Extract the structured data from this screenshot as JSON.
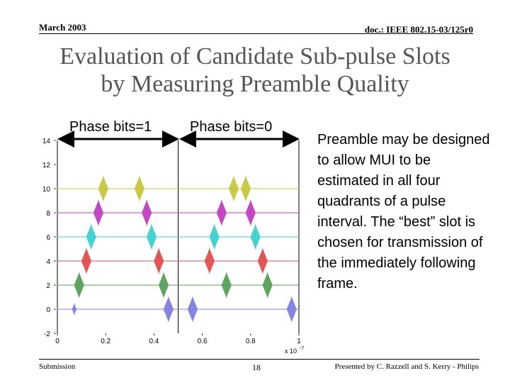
{
  "header": {
    "date": "March 2003",
    "doc_id": "doc.: IEEE 802.15-03/125r0"
  },
  "title": {
    "line1": "Evaluation of Candidate Sub-pulse Slots",
    "line2": "by Measuring Preamble Quality"
  },
  "phase_labels": {
    "left": "Phase bits=1",
    "right": "Phase bits=0"
  },
  "body_text": "Preamble may be designed to allow MUI to be estimated in all four quadrants of a pulse interval. The “best” slot is chosen for transmission of the immediately following frame.",
  "footer": {
    "left": "Submission",
    "center": "18",
    "right": "Presented by C. Razzell and S. Kerry - Philips"
  },
  "chart_data": {
    "type": "line",
    "x_tick_labels": [
      "0",
      "0.2",
      "0.4",
      "0.6",
      "0.8",
      "1"
    ],
    "x_exponent_label": "x 10",
    "x_exponent": "-7",
    "y_tick_labels": [
      "-2",
      "0",
      "2",
      "4",
      "6",
      "8",
      "10",
      "12",
      "14"
    ],
    "xlim": [
      0,
      1e-07
    ],
    "ylim": [
      -2,
      14
    ],
    "grid": false,
    "series": [
      {
        "offset": 0,
        "color": "#8080e0",
        "pulse_times": [
          0.07,
          0.46,
          0.56,
          0.97
        ],
        "pulse_amplitudes": [
          0.4,
          1.0,
          1.0,
          1.0
        ]
      },
      {
        "offset": 2,
        "color": "#5aa05a",
        "pulse_times": [
          0.09,
          0.44,
          0.7,
          0.87
        ]
      },
      {
        "offset": 4,
        "color": "#e05050",
        "pulse_times": [
          0.12,
          0.42,
          0.63,
          0.85
        ]
      },
      {
        "offset": 6,
        "color": "#40d0d0",
        "pulse_times": [
          0.14,
          0.39,
          0.65,
          0.82
        ]
      },
      {
        "offset": 8,
        "color": "#c040c0",
        "pulse_times": [
          0.17,
          0.37,
          0.68,
          0.8
        ]
      },
      {
        "offset": 10,
        "color": "#c8c840",
        "pulse_times": [
          0.19,
          0.34,
          0.73,
          0.78
        ]
      }
    ],
    "vertical_lines_x": [
      0,
      0.5,
      1.0
    ]
  }
}
